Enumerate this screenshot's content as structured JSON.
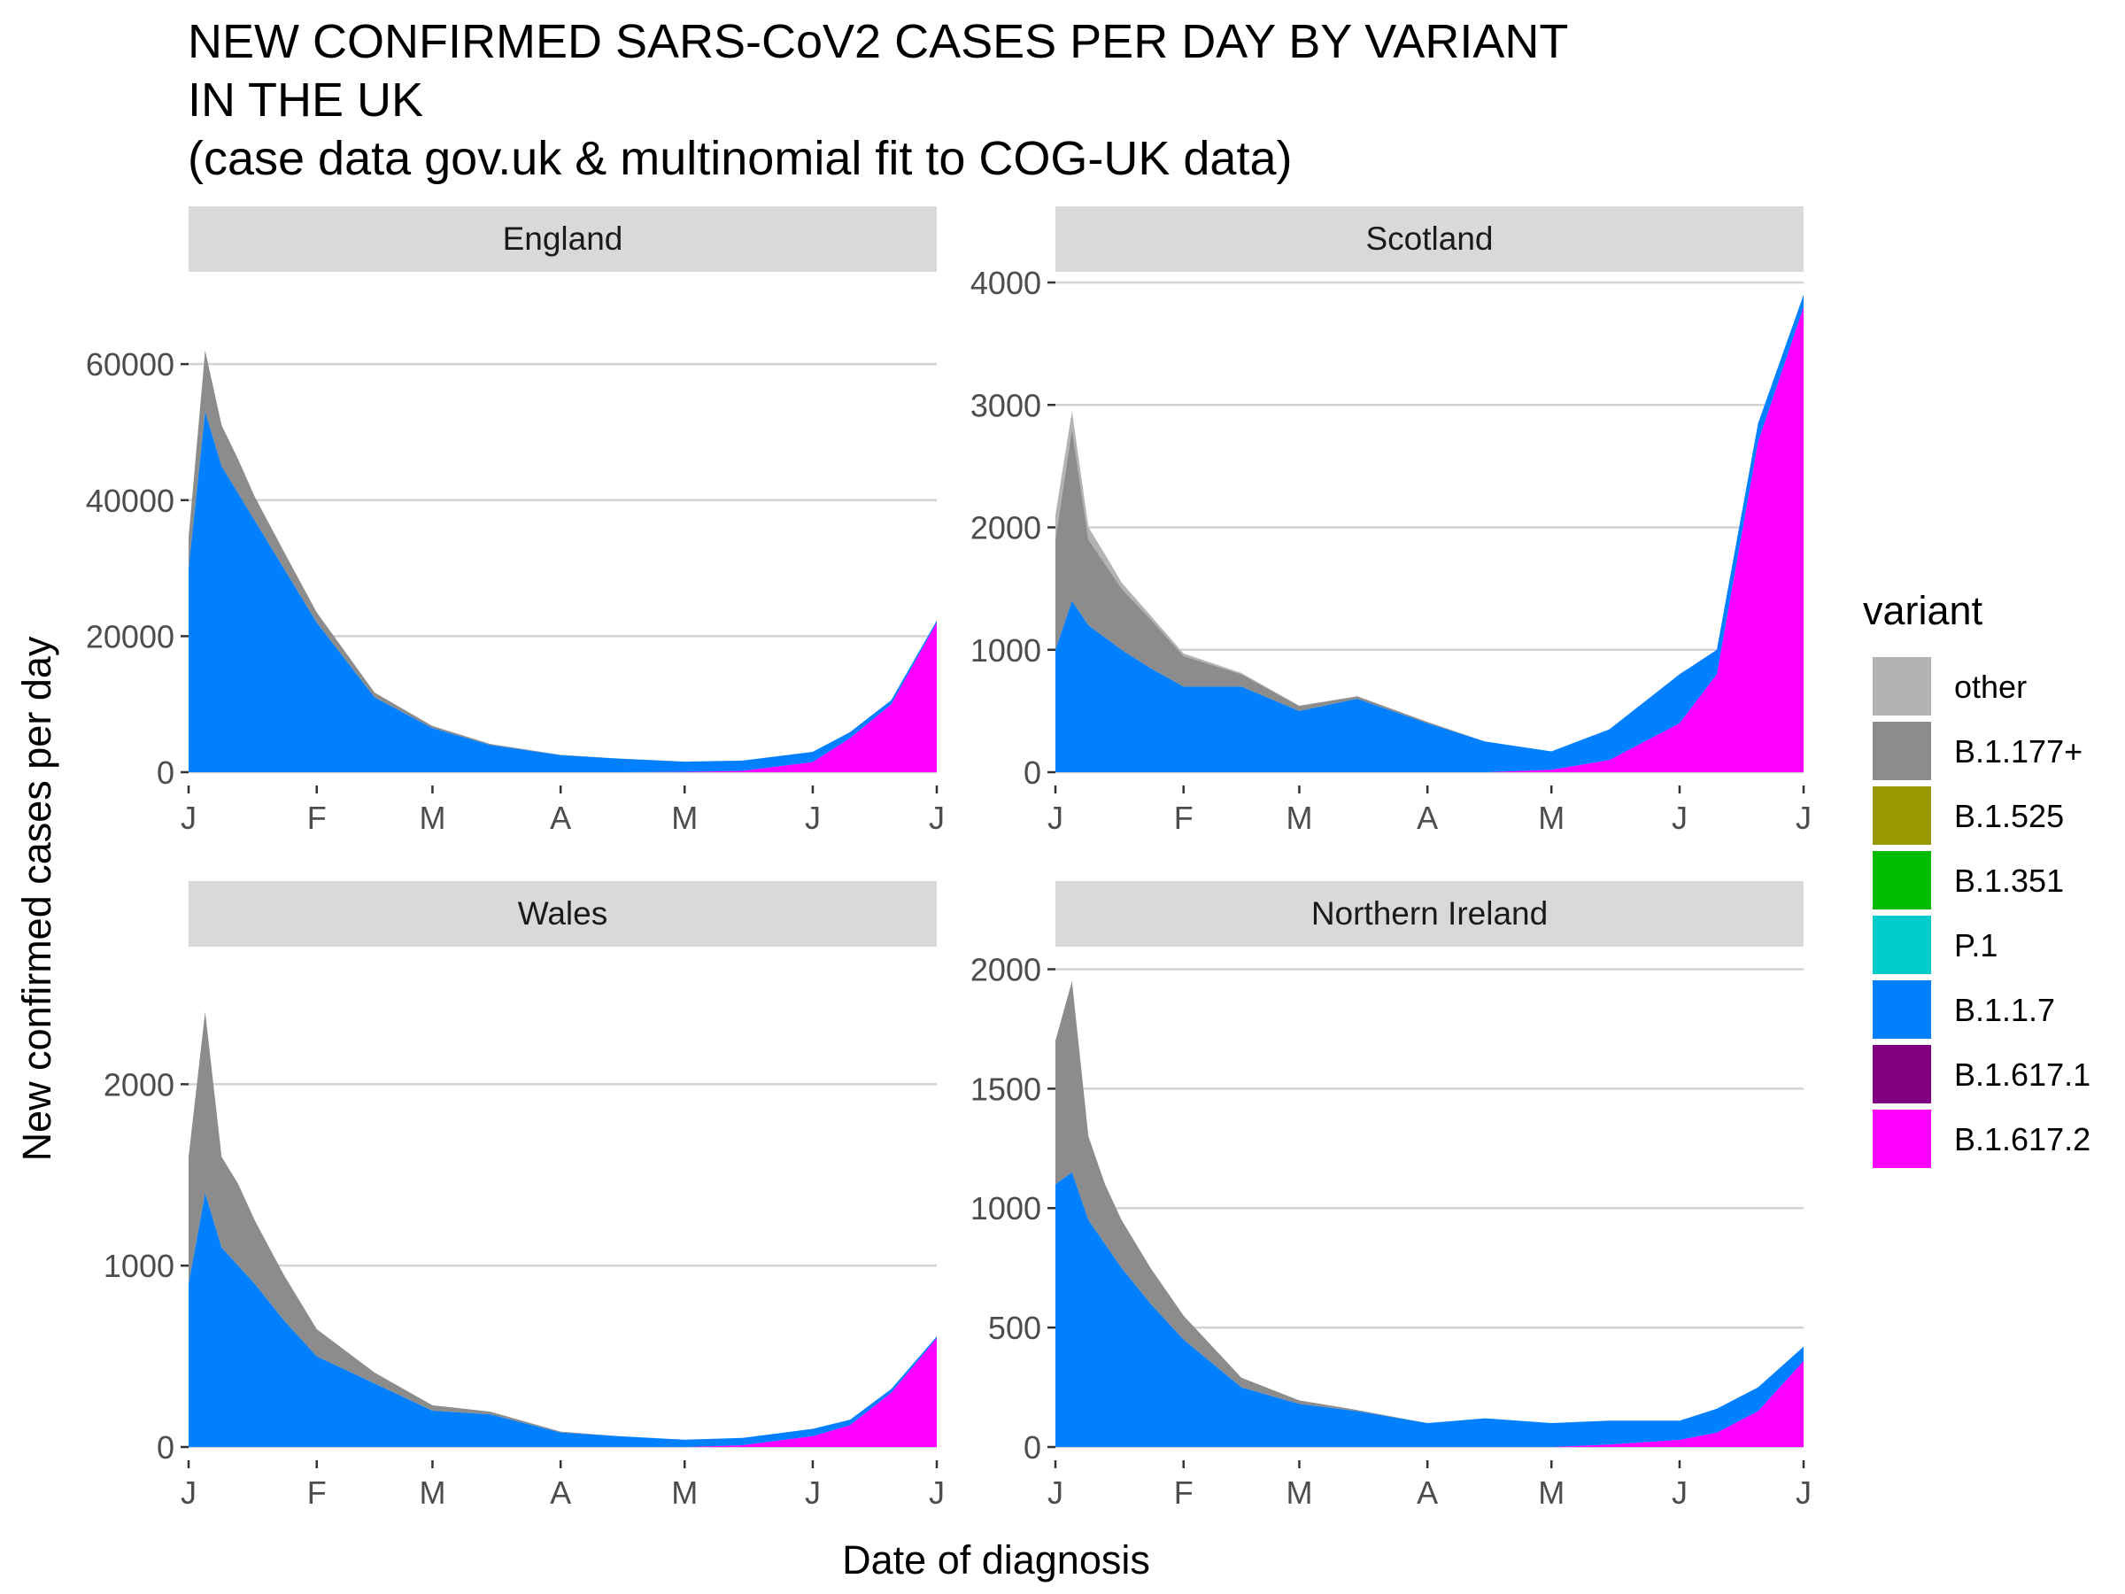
{
  "title": {
    "lines": [
      "NEW CONFIRMED SARS-CoV2 CASES PER DAY BY VARIANT",
      "IN THE UK",
      "(case data gov.uk & multinomial fit to COG-UK data)"
    ]
  },
  "chart_data": {
    "type": "area",
    "stacked": true,
    "xlabel": "Date of diagnosis",
    "ylabel": "New confirmed cases per day",
    "legend_title": "variant",
    "legend_position": "right",
    "grid": "horizontal-major",
    "x_ticks": [
      "J",
      "F",
      "M",
      "A",
      "M",
      "J",
      "J"
    ],
    "x_tick_dates": [
      "2021-01-01",
      "2021-02-01",
      "2021-03-01",
      "2021-04-01",
      "2021-05-01",
      "2021-06-01",
      "2021-07-01"
    ],
    "variants": [
      {
        "name": "other",
        "color": "#b3b3b3"
      },
      {
        "name": "B.1.177+",
        "color": "#8c8c8c"
      },
      {
        "name": "B.1.525",
        "color": "#999900"
      },
      {
        "name": "B.1.351",
        "color": "#00bb00"
      },
      {
        "name": "P.1",
        "color": "#00cccc"
      },
      {
        "name": "B.1.1.7",
        "color": "#0080ff"
      },
      {
        "name": "B.1.617.1",
        "color": "#800080"
      },
      {
        "name": "B.1.617.2",
        "color": "#ff00ff"
      }
    ],
    "panels": [
      {
        "name": "England",
        "ylim": [
          0,
          72000
        ],
        "y_ticks": [
          0,
          20000,
          40000,
          60000
        ],
        "y_tick_labels": [
          "0",
          "20000",
          "40000",
          "60000"
        ],
        "dates": [
          "2021-01-01",
          "2021-01-05",
          "2021-01-09",
          "2021-01-13",
          "2021-01-17",
          "2021-01-24",
          "2021-02-01",
          "2021-02-15",
          "2021-03-01",
          "2021-03-15",
          "2021-04-01",
          "2021-04-15",
          "2021-05-01",
          "2021-05-15",
          "2021-06-01",
          "2021-06-10",
          "2021-06-20",
          "2021-07-01"
        ],
        "series": [
          {
            "name": "B.1.177+",
            "values": [
              4500,
              9000,
              6000,
              5000,
              3500,
              2500,
              1500,
              700,
              300,
              150,
              50,
              20,
              10,
              5,
              0,
              0,
              0,
              0
            ]
          },
          {
            "name": "B.1.1.7",
            "values": [
              30000,
              53000,
              45000,
              41000,
              37000,
              30000,
              22000,
              11000,
              6500,
              4000,
              2500,
              2000,
              1500,
              1500,
              1500,
              900,
              600,
              300
            ]
          },
          {
            "name": "B.1.617.2",
            "values": [
              0,
              0,
              0,
              0,
              0,
              0,
              0,
              0,
              0,
              0,
              0,
              0,
              50,
              200,
              1500,
              5000,
              10000,
              22000
            ]
          }
        ]
      },
      {
        "name": "Scotland",
        "ylim": [
          0,
          4000
        ],
        "y_ticks": [
          0,
          1000,
          2000,
          3000,
          4000
        ],
        "y_tick_labels": [
          "0",
          "1000",
          "2000",
          "3000",
          "4000"
        ],
        "dates": [
          "2021-01-01",
          "2021-01-05",
          "2021-01-09",
          "2021-01-13",
          "2021-01-17",
          "2021-01-24",
          "2021-02-01",
          "2021-02-15",
          "2021-03-01",
          "2021-03-15",
          "2021-04-01",
          "2021-04-15",
          "2021-05-01",
          "2021-05-15",
          "2021-06-01",
          "2021-06-10",
          "2021-06-20",
          "2021-07-01"
        ],
        "series": [
          {
            "name": "other",
            "values": [
              200,
              150,
              100,
              80,
              50,
              30,
              20,
              10,
              5,
              0,
              0,
              0,
              0,
              0,
              0,
              0,
              0,
              0
            ]
          },
          {
            "name": "B.1.177+",
            "values": [
              900,
              1400,
              700,
              600,
              500,
              400,
              250,
              100,
              40,
              20,
              10,
              0,
              0,
              0,
              0,
              0,
              0,
              0
            ]
          },
          {
            "name": "B.1.1.7",
            "values": [
              1000,
              1400,
              1200,
              1100,
              1000,
              850,
              700,
              700,
              500,
              600,
              400,
              250,
              150,
              250,
              400,
              200,
              150,
              100
            ]
          },
          {
            "name": "B.1.617.2",
            "values": [
              0,
              0,
              0,
              0,
              0,
              0,
              0,
              0,
              0,
              0,
              0,
              0,
              20,
              100,
              400,
              800,
              2700,
              3800
            ]
          }
        ]
      },
      {
        "name": "Wales",
        "ylim": [
          0,
          2700
        ],
        "y_ticks": [
          0,
          1000,
          2000
        ],
        "y_tick_labels": [
          "0",
          "1000",
          "2000"
        ],
        "dates": [
          "2021-01-01",
          "2021-01-05",
          "2021-01-09",
          "2021-01-13",
          "2021-01-17",
          "2021-01-24",
          "2021-02-01",
          "2021-02-15",
          "2021-03-01",
          "2021-03-15",
          "2021-04-01",
          "2021-04-15",
          "2021-05-01",
          "2021-05-15",
          "2021-06-01",
          "2021-06-10",
          "2021-06-20",
          "2021-07-01"
        ],
        "series": [
          {
            "name": "B.1.177+",
            "values": [
              700,
              1000,
              500,
              450,
              350,
              250,
              150,
              60,
              30,
              15,
              5,
              0,
              0,
              0,
              0,
              0,
              0,
              0
            ]
          },
          {
            "name": "B.1.1.7",
            "values": [
              900,
              1400,
              1100,
              1000,
              900,
              700,
              500,
              350,
              200,
              180,
              80,
              60,
              40,
              40,
              40,
              30,
              20,
              10
            ]
          },
          {
            "name": "B.1.617.2",
            "values": [
              0,
              0,
              0,
              0,
              0,
              0,
              0,
              0,
              0,
              0,
              0,
              0,
              0,
              10,
              60,
              120,
              300,
              600
            ]
          }
        ]
      },
      {
        "name": "Northern Ireland",
        "ylim": [
          0,
          2050
        ],
        "y_ticks": [
          0,
          500,
          1000,
          1500,
          2000
        ],
        "y_tick_labels": [
          "0",
          "500",
          "1000",
          "1500",
          "2000"
        ],
        "dates": [
          "2021-01-01",
          "2021-01-05",
          "2021-01-09",
          "2021-01-13",
          "2021-01-17",
          "2021-01-24",
          "2021-02-01",
          "2021-02-15",
          "2021-03-01",
          "2021-03-15",
          "2021-04-01",
          "2021-04-15",
          "2021-05-01",
          "2021-05-15",
          "2021-06-01",
          "2021-06-10",
          "2021-06-20",
          "2021-07-01"
        ],
        "series": [
          {
            "name": "B.1.177+",
            "values": [
              600,
              800,
              350,
              250,
              200,
              150,
              100,
              40,
              15,
              5,
              0,
              0,
              0,
              0,
              0,
              0,
              0,
              0
            ]
          },
          {
            "name": "B.1.1.7",
            "values": [
              1100,
              1150,
              950,
              850,
              750,
              600,
              450,
              250,
              180,
              150,
              100,
              120,
              100,
              100,
              80,
              100,
              100,
              60
            ]
          },
          {
            "name": "B.1.617.2",
            "values": [
              0,
              0,
              0,
              0,
              0,
              0,
              0,
              0,
              0,
              0,
              0,
              0,
              0,
              10,
              30,
              60,
              150,
              360
            ]
          }
        ]
      }
    ]
  }
}
